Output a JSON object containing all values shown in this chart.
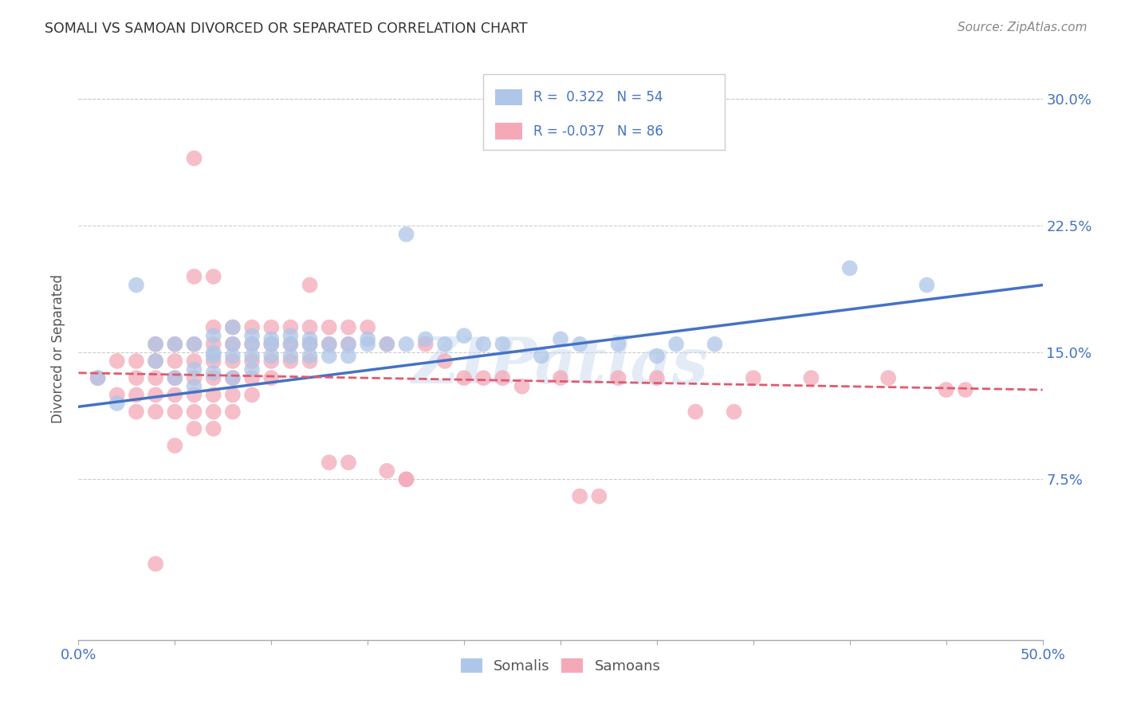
{
  "title": "SOMALI VS SAMOAN DIVORCED OR SEPARATED CORRELATION CHART",
  "source": "Source: ZipAtlas.com",
  "ylabel": "Divorced or Separated",
  "ytick_labels": [
    "7.5%",
    "15.0%",
    "22.5%",
    "30.0%"
  ],
  "ytick_values": [
    0.075,
    0.15,
    0.225,
    0.3
  ],
  "xlim": [
    0.0,
    0.5
  ],
  "ylim": [
    -0.02,
    0.325
  ],
  "watermark": "ZIPatlas",
  "legend_R_somali": "0.322",
  "legend_N_somali": "54",
  "legend_R_samoan": "-0.037",
  "legend_N_samoan": "86",
  "somali_color": "#aec6e8",
  "samoan_color": "#f4a8b8",
  "somali_line_color": "#4472c4",
  "samoan_line_color": "#e05a6e",
  "somali_scatter": [
    [
      0.01,
      0.135
    ],
    [
      0.02,
      0.12
    ],
    [
      0.03,
      0.19
    ],
    [
      0.04,
      0.155
    ],
    [
      0.04,
      0.145
    ],
    [
      0.05,
      0.155
    ],
    [
      0.05,
      0.135
    ],
    [
      0.06,
      0.155
    ],
    [
      0.06,
      0.14
    ],
    [
      0.06,
      0.13
    ],
    [
      0.07,
      0.16
    ],
    [
      0.07,
      0.15
    ],
    [
      0.07,
      0.148
    ],
    [
      0.07,
      0.138
    ],
    [
      0.08,
      0.165
    ],
    [
      0.08,
      0.155
    ],
    [
      0.08,
      0.148
    ],
    [
      0.08,
      0.135
    ],
    [
      0.09,
      0.16
    ],
    [
      0.09,
      0.155
    ],
    [
      0.09,
      0.148
    ],
    [
      0.09,
      0.14
    ],
    [
      0.1,
      0.158
    ],
    [
      0.1,
      0.155
    ],
    [
      0.1,
      0.148
    ],
    [
      0.11,
      0.16
    ],
    [
      0.11,
      0.155
    ],
    [
      0.11,
      0.148
    ],
    [
      0.12,
      0.158
    ],
    [
      0.12,
      0.155
    ],
    [
      0.12,
      0.148
    ],
    [
      0.13,
      0.155
    ],
    [
      0.13,
      0.148
    ],
    [
      0.14,
      0.155
    ],
    [
      0.14,
      0.148
    ],
    [
      0.15,
      0.158
    ],
    [
      0.15,
      0.155
    ],
    [
      0.16,
      0.155
    ],
    [
      0.17,
      0.155
    ],
    [
      0.18,
      0.158
    ],
    [
      0.19,
      0.155
    ],
    [
      0.2,
      0.16
    ],
    [
      0.21,
      0.155
    ],
    [
      0.22,
      0.155
    ],
    [
      0.17,
      0.22
    ],
    [
      0.24,
      0.148
    ],
    [
      0.25,
      0.158
    ],
    [
      0.26,
      0.155
    ],
    [
      0.28,
      0.155
    ],
    [
      0.3,
      0.148
    ],
    [
      0.31,
      0.155
    ],
    [
      0.33,
      0.155
    ],
    [
      0.4,
      0.2
    ],
    [
      0.44,
      0.19
    ]
  ],
  "samoan_scatter": [
    [
      0.01,
      0.135
    ],
    [
      0.02,
      0.145
    ],
    [
      0.02,
      0.125
    ],
    [
      0.03,
      0.145
    ],
    [
      0.03,
      0.135
    ],
    [
      0.03,
      0.125
    ],
    [
      0.03,
      0.115
    ],
    [
      0.04,
      0.155
    ],
    [
      0.04,
      0.145
    ],
    [
      0.04,
      0.135
    ],
    [
      0.04,
      0.125
    ],
    [
      0.04,
      0.115
    ],
    [
      0.04,
      0.025
    ],
    [
      0.05,
      0.155
    ],
    [
      0.05,
      0.145
    ],
    [
      0.05,
      0.135
    ],
    [
      0.05,
      0.125
    ],
    [
      0.05,
      0.115
    ],
    [
      0.05,
      0.095
    ],
    [
      0.06,
      0.265
    ],
    [
      0.06,
      0.195
    ],
    [
      0.06,
      0.155
    ],
    [
      0.06,
      0.145
    ],
    [
      0.06,
      0.135
    ],
    [
      0.06,
      0.125
    ],
    [
      0.06,
      0.115
    ],
    [
      0.06,
      0.105
    ],
    [
      0.07,
      0.195
    ],
    [
      0.07,
      0.165
    ],
    [
      0.07,
      0.155
    ],
    [
      0.07,
      0.145
    ],
    [
      0.07,
      0.135
    ],
    [
      0.07,
      0.125
    ],
    [
      0.07,
      0.115
    ],
    [
      0.07,
      0.105
    ],
    [
      0.08,
      0.165
    ],
    [
      0.08,
      0.155
    ],
    [
      0.08,
      0.145
    ],
    [
      0.08,
      0.135
    ],
    [
      0.08,
      0.125
    ],
    [
      0.08,
      0.115
    ],
    [
      0.09,
      0.165
    ],
    [
      0.09,
      0.155
    ],
    [
      0.09,
      0.145
    ],
    [
      0.09,
      0.135
    ],
    [
      0.09,
      0.125
    ],
    [
      0.1,
      0.165
    ],
    [
      0.1,
      0.155
    ],
    [
      0.1,
      0.145
    ],
    [
      0.1,
      0.135
    ],
    [
      0.11,
      0.165
    ],
    [
      0.11,
      0.155
    ],
    [
      0.11,
      0.145
    ],
    [
      0.12,
      0.19
    ],
    [
      0.12,
      0.165
    ],
    [
      0.12,
      0.155
    ],
    [
      0.12,
      0.145
    ],
    [
      0.13,
      0.165
    ],
    [
      0.13,
      0.155
    ],
    [
      0.13,
      0.085
    ],
    [
      0.14,
      0.165
    ],
    [
      0.14,
      0.155
    ],
    [
      0.14,
      0.085
    ],
    [
      0.15,
      0.165
    ],
    [
      0.16,
      0.155
    ],
    [
      0.17,
      0.075
    ],
    [
      0.17,
      0.075
    ],
    [
      0.18,
      0.155
    ],
    [
      0.19,
      0.145
    ],
    [
      0.2,
      0.135
    ],
    [
      0.21,
      0.135
    ],
    [
      0.22,
      0.135
    ],
    [
      0.25,
      0.135
    ],
    [
      0.26,
      0.065
    ],
    [
      0.27,
      0.065
    ],
    [
      0.28,
      0.135
    ],
    [
      0.3,
      0.135
    ],
    [
      0.35,
      0.135
    ],
    [
      0.38,
      0.135
    ],
    [
      0.42,
      0.135
    ],
    [
      0.45,
      0.128
    ],
    [
      0.46,
      0.128
    ],
    [
      0.32,
      0.115
    ],
    [
      0.34,
      0.115
    ],
    [
      0.23,
      0.13
    ],
    [
      0.16,
      0.08
    ]
  ],
  "somali_line_x": [
    0.0,
    0.5
  ],
  "somali_line_y": [
    0.118,
    0.19
  ],
  "samoan_line_x": [
    0.0,
    0.5
  ],
  "samoan_line_y": [
    0.138,
    0.128
  ]
}
